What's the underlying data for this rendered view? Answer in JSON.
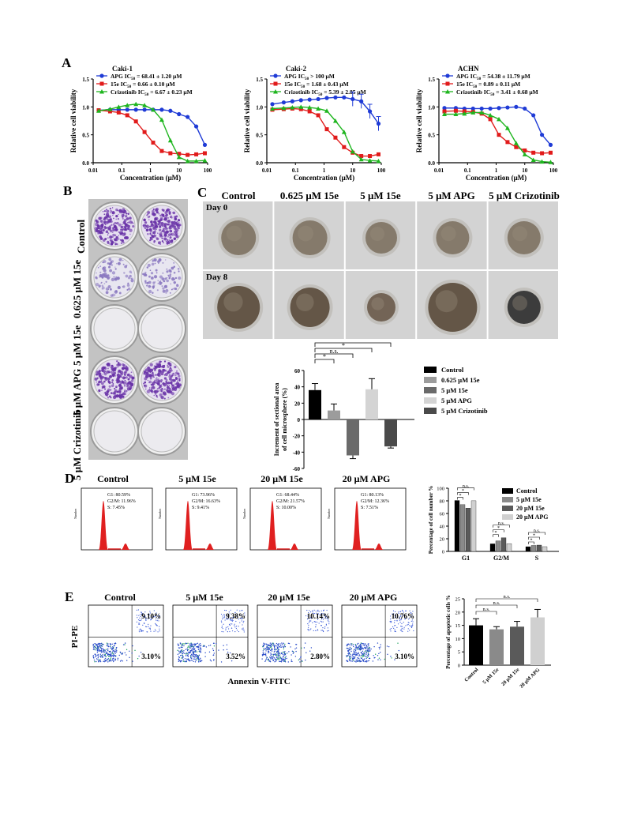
{
  "panels": {
    "A": "A",
    "B": "B",
    "C": "C",
    "D": "D",
    "E": "E"
  },
  "panelA": {
    "xlabel": "Concentration (μM)",
    "ylabel": "Relative cell viability",
    "xticks": [
      "0.01",
      "0.1",
      "1",
      "10",
      "100"
    ],
    "yticks": [
      "0.0",
      "0.5",
      "1.0",
      "1.5"
    ],
    "charts": [
      {
        "title": "Caki-1",
        "legend": [
          "APG  IC50 = 68.41 ± 1.20 μM",
          "15e  IC50 = 0.66 ± 0.10 μM",
          "Crizotinib IC50 = 6.67 ± 0.23 μM"
        ]
      },
      {
        "title": "Caki-2",
        "legend": [
          "APG  IC50 > 100 μM",
          "15e  IC50 = 1.68 ± 0.43 μM",
          "Crizotinib IC50 = 5.39 ± 2.85 μM"
        ]
      },
      {
        "title": "ACHN",
        "legend": [
          "APG  IC50 = 54.38 ± 11.79 μM",
          "15e  IC50 = 0.89 ± 0.11 μM",
          "Crizotinib IC50 = 3.41 ± 0.68 μM"
        ]
      }
    ]
  },
  "panelB": {
    "rows": [
      "Control",
      "0.625 μM 15e",
      "5 μM 15e",
      "5 μM APG",
      "5 μM Crizotinib"
    ]
  },
  "panelC": {
    "headers": [
      "Control",
      "0.625 μM 15e",
      "5 μM 15e",
      "5 μM APG",
      "5 μM Crizotinib"
    ],
    "day0": "Day 0",
    "day8": "Day 8",
    "ylabel": "Increment of sectional area of cell microsphere (%)",
    "legend": [
      "Control",
      "0.625 μM 15e",
      "5 μM 15e",
      "5 μM APG",
      "5 μM Crizotinib"
    ],
    "sig": [
      "*",
      "n.s.",
      "*",
      "*"
    ]
  },
  "panelD": {
    "headers": [
      "Control",
      "5 μM 15e",
      "20 μM 15e",
      "20 μM APG"
    ],
    "stats": [
      [
        "G1: 80.59%",
        "G2/M: 11.96%",
        "S: 7.45%"
      ],
      [
        "G1: 73.96%",
        "G2/M: 16.63%",
        "S: 9.41%"
      ],
      [
        "G1: 68.44%",
        "G2/M: 21.57%",
        "S: 10.00%"
      ],
      [
        "G1: 80.13%",
        "G2/M: 12.36%",
        "S: 7.51%"
      ]
    ],
    "ylabel": "Percentage of cell number %",
    "groups": [
      "G1",
      "G2/M",
      "S"
    ],
    "legend": [
      "Control",
      "5 μM 15e",
      "20 μM 15e",
      "20 μM APG"
    ]
  },
  "panelE": {
    "headers": [
      "Control",
      "5 μM 15e",
      "20 μM 15e",
      "20 μM APG"
    ],
    "upper": [
      "9.10%",
      "9.38%",
      "10.14%",
      "10.76%"
    ],
    "lower": [
      "3.10%",
      "3.52%",
      "2.80%",
      "3.10%"
    ],
    "yaxis": "PI-PE",
    "xaxis": "Annexin V-FITC",
    "ylabel": "Percentage of apoptotic cells %",
    "cats": [
      "Control",
      "5 μM 15e",
      "20 μM 15e",
      "20 μM APG"
    ],
    "sig": [
      "n.s.",
      "n.s.",
      "n.s."
    ]
  },
  "chart_data": [
    {
      "type": "line",
      "title": "Caki-1",
      "xlabel": "Concentration (μM)",
      "ylabel": "Relative cell viability",
      "xscale": "log",
      "xlim": [
        0.01,
        100
      ],
      "ylim": [
        0,
        1.5
      ],
      "x": [
        0.0156,
        0.039,
        0.078,
        0.156,
        0.3125,
        0.625,
        1.25,
        2.5,
        5,
        10,
        20,
        40,
        80
      ],
      "series": [
        {
          "name": "APG",
          "color": "#1f3bd6",
          "values": [
            0.94,
            0.95,
            0.95,
            0.95,
            0.95,
            0.95,
            0.95,
            0.95,
            0.93,
            0.87,
            0.82,
            0.65,
            0.32
          ]
        },
        {
          "name": "15e",
          "color": "#e11b1b",
          "values": [
            0.94,
            0.92,
            0.9,
            0.85,
            0.74,
            0.55,
            0.36,
            0.21,
            0.17,
            0.16,
            0.14,
            0.15,
            0.17
          ]
        },
        {
          "name": "Crizotinib",
          "color": "#1eb51e",
          "values": [
            0.93,
            0.96,
            1.0,
            1.03,
            1.05,
            1.03,
            0.95,
            0.77,
            0.4,
            0.1,
            0.03,
            0.03,
            0.04
          ]
        }
      ]
    },
    {
      "type": "line",
      "title": "Caki-2",
      "xlabel": "Concentration (μM)",
      "ylabel": "Relative cell viability",
      "xscale": "log",
      "xlim": [
        0.01,
        100
      ],
      "ylim": [
        0,
        1.5
      ],
      "x": [
        0.0156,
        0.039,
        0.078,
        0.156,
        0.3125,
        0.625,
        1.25,
        2.5,
        5,
        10,
        20,
        40,
        80
      ],
      "series": [
        {
          "name": "APG",
          "color": "#1f3bd6",
          "values": [
            1.05,
            1.08,
            1.1,
            1.12,
            1.13,
            1.14,
            1.16,
            1.17,
            1.17,
            1.14,
            1.1,
            0.92,
            0.7
          ]
        },
        {
          "name": "15e",
          "color": "#e11b1b",
          "values": [
            0.95,
            0.96,
            0.97,
            0.96,
            0.92,
            0.85,
            0.6,
            0.45,
            0.28,
            0.18,
            0.12,
            0.12,
            0.15
          ]
        },
        {
          "name": "Crizotinib",
          "color": "#1eb51e",
          "values": [
            0.97,
            0.98,
            0.99,
            1.0,
            0.99,
            0.97,
            0.93,
            0.75,
            0.55,
            0.2,
            0.06,
            0.04,
            0.03
          ]
        }
      ]
    },
    {
      "type": "line",
      "title": "ACHN",
      "xlabel": "Concentration (μM)",
      "ylabel": "Relative cell viability",
      "xscale": "log",
      "xlim": [
        0.01,
        100
      ],
      "ylim": [
        0,
        1.5
      ],
      "x": [
        0.0156,
        0.039,
        0.078,
        0.156,
        0.3125,
        0.625,
        1.25,
        2.5,
        5,
        10,
        20,
        40,
        80
      ],
      "series": [
        {
          "name": "APG",
          "color": "#1f3bd6",
          "values": [
            0.98,
            0.98,
            0.97,
            0.97,
            0.97,
            0.97,
            0.98,
            0.99,
            1.0,
            0.97,
            0.85,
            0.5,
            0.32
          ]
        },
        {
          "name": "15e",
          "color": "#e11b1b",
          "values": [
            0.92,
            0.93,
            0.92,
            0.91,
            0.88,
            0.78,
            0.5,
            0.37,
            0.28,
            0.22,
            0.18,
            0.17,
            0.18
          ]
        },
        {
          "name": "Crizotinib",
          "color": "#1eb51e",
          "values": [
            0.87,
            0.87,
            0.88,
            0.9,
            0.9,
            0.85,
            0.78,
            0.62,
            0.35,
            0.15,
            0.05,
            0.02,
            0.01
          ]
        }
      ]
    },
    {
      "type": "bar",
      "title": "",
      "ylabel": "Increment of sectional area of cell microsphere (%)",
      "ylim": [
        -60,
        60
      ],
      "categories": [
        "Control",
        "0.625 μM 15e",
        "5 μM 15e",
        "5 μM APG",
        "5 μM Crizotinib"
      ],
      "values": [
        36,
        11,
        -44,
        37,
        -33
      ],
      "errors": [
        8,
        8,
        4,
        13,
        2
      ],
      "colors": [
        "#000000",
        "#9c9c9c",
        "#6a6a6a",
        "#d4d4d4",
        "#4a4a4a"
      ]
    },
    {
      "type": "bar",
      "title": "",
      "ylabel": "Percentage of cell number %",
      "ylim": [
        0,
        100
      ],
      "categories": [
        "G1",
        "G2/M",
        "S"
      ],
      "series": [
        {
          "name": "Control",
          "color": "#000000",
          "values": [
            80.59,
            11.96,
            7.45
          ]
        },
        {
          "name": "5 μM 15e",
          "color": "#8a8a8a",
          "values": [
            73.96,
            16.63,
            9.41
          ]
        },
        {
          "name": "20 μM 15e",
          "color": "#5a5a5a",
          "values": [
            68.44,
            21.57,
            10.0
          ]
        },
        {
          "name": "20 μM APG",
          "color": "#d0d0d0",
          "values": [
            80.13,
            12.36,
            7.51
          ]
        }
      ]
    },
    {
      "type": "bar",
      "title": "",
      "ylabel": "Percentage of apoptotic cells %",
      "ylim": [
        0,
        25
      ],
      "categories": [
        "Control",
        "5 μM 15e",
        "20 μM 15e",
        "20 μM APG"
      ],
      "values": [
        15,
        13.5,
        14.5,
        18
      ],
      "errors": [
        2.5,
        1,
        2,
        3
      ],
      "colors": [
        "#000000",
        "#8a8a8a",
        "#5a5a5a",
        "#d0d0d0"
      ]
    }
  ]
}
